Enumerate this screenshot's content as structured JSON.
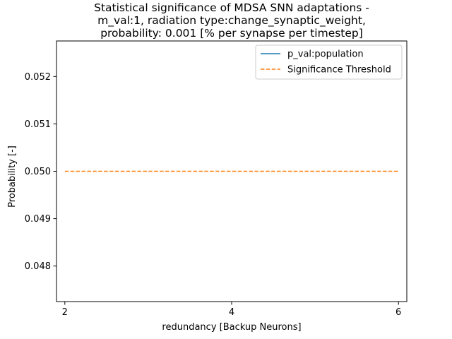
{
  "chart_data": {
    "type": "line",
    "title_lines": [
      "Statistical significance of MDSA SNN adaptations -",
      "m_val:1, radiation type:change_synaptic_weight,",
      "probability: 0.001 [% per synapse per timestep]"
    ],
    "xlabel": "redundancy [Backup Neurons]",
    "ylabel": "Probability [-]",
    "xlim": [
      1.9,
      6.1
    ],
    "ylim": [
      0.04725,
      0.05275
    ],
    "xticks": [
      2,
      4,
      6
    ],
    "xtick_labels": [
      "2",
      "4",
      "6"
    ],
    "yticks": [
      0.048,
      0.049,
      0.05,
      0.051,
      0.052
    ],
    "ytick_labels": [
      "0.048",
      "0.049",
      "0.050",
      "0.051",
      "0.052"
    ],
    "grid": false,
    "legend_position": "top-right",
    "series": [
      {
        "name": "p_val:population",
        "color": "#1f77b4",
        "style": "solid",
        "x": [],
        "y": []
      },
      {
        "name": "Significance Threshold",
        "color": "#ff7f0e",
        "style": "dashed",
        "x": [
          2,
          6
        ],
        "y": [
          0.05,
          0.05
        ]
      }
    ]
  }
}
